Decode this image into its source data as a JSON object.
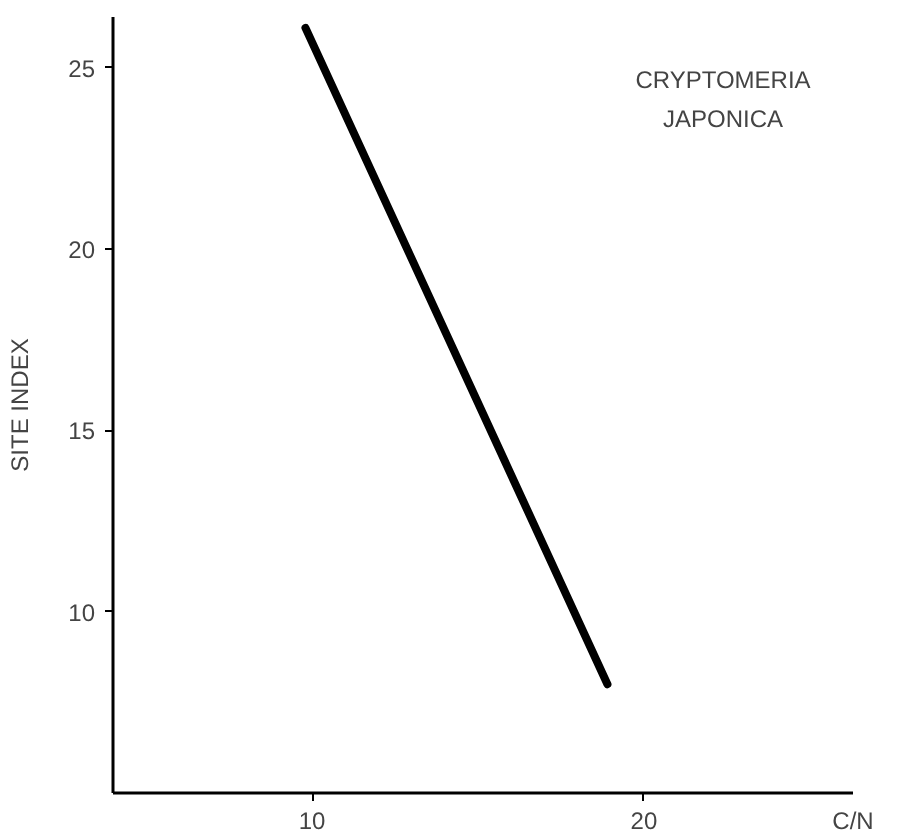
{
  "chart_data": {
    "type": "line",
    "xlabel": "C/N",
    "ylabel": "SITE INDEX",
    "annotations": [
      "CRYPTOMERIA JAPONICA"
    ],
    "x": [
      9.8,
      18.9
    ],
    "series": [
      {
        "color": "#000000",
        "values": [
          26.1,
          8.0
        ]
      }
    ],
    "xlim": [
      4,
      26.3
    ],
    "xticks": [
      10,
      20
    ],
    "ylim": [
      5,
      26.4
    ],
    "yticks": [
      10,
      15,
      20,
      25
    ],
    "grid": false,
    "marker": "none",
    "line_style": "solid"
  }
}
